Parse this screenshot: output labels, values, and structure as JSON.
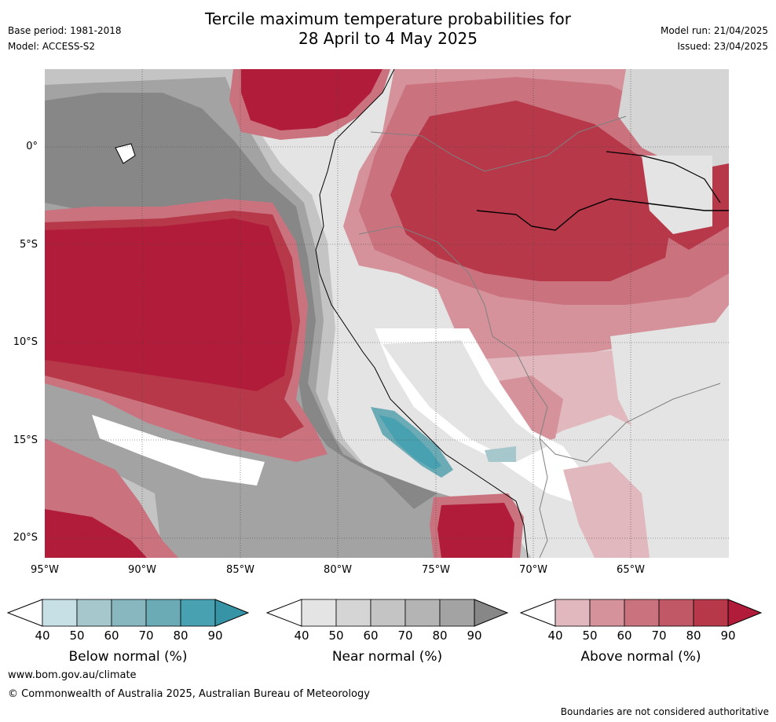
{
  "header": {
    "title_line1": "Tercile maximum temperature probabilities for",
    "title_line2": "28 April to 4 May 2025",
    "base_period": "Base period: 1981-2018",
    "model": "Model: ACCESS-S2",
    "model_run": "Model run: 21/04/2025",
    "issued": "Issued: 23/04/2025"
  },
  "map": {
    "lon_range": [
      -95,
      -60
    ],
    "lat_range": [
      -21,
      4
    ],
    "lat_labels": [
      "0°",
      "5°S",
      "10°S",
      "15°S",
      "20°S"
    ],
    "lon_labels": [
      "95°W",
      "90°W",
      "85°W",
      "80°W",
      "75°W",
      "70°W",
      "65°W"
    ]
  },
  "colorbars": {
    "below": {
      "label": "Below normal (%)",
      "ticks": [
        "40",
        "50",
        "60",
        "70",
        "80",
        "90"
      ],
      "colors": [
        "#c6e0e6",
        "#a6c8cd",
        "#88b7c0",
        "#6aabb6",
        "#48a1b0",
        "#3694a6"
      ]
    },
    "near": {
      "label": "Near normal (%)",
      "ticks": [
        "40",
        "50",
        "60",
        "70",
        "80",
        "90"
      ],
      "colors": [
        "#e4e4e4",
        "#d5d5d5",
        "#c4c4c4",
        "#b4b4b4",
        "#a3a3a3",
        "#878787"
      ]
    },
    "above": {
      "label": "Above normal (%)",
      "ticks": [
        "40",
        "50",
        "60",
        "70",
        "80",
        "90"
      ],
      "colors": [
        "#e0b8bd",
        "#d5929b",
        "#ca737f",
        "#c05866",
        "#b63849",
        "#b01c39"
      ]
    }
  },
  "footer": {
    "website": "www.bom.gov.au/climate",
    "copyright": "© Commonwealth of Australia 2025, Australian Bureau of Meteorology",
    "disclaimer": "Boundaries are not considered authoritative"
  }
}
